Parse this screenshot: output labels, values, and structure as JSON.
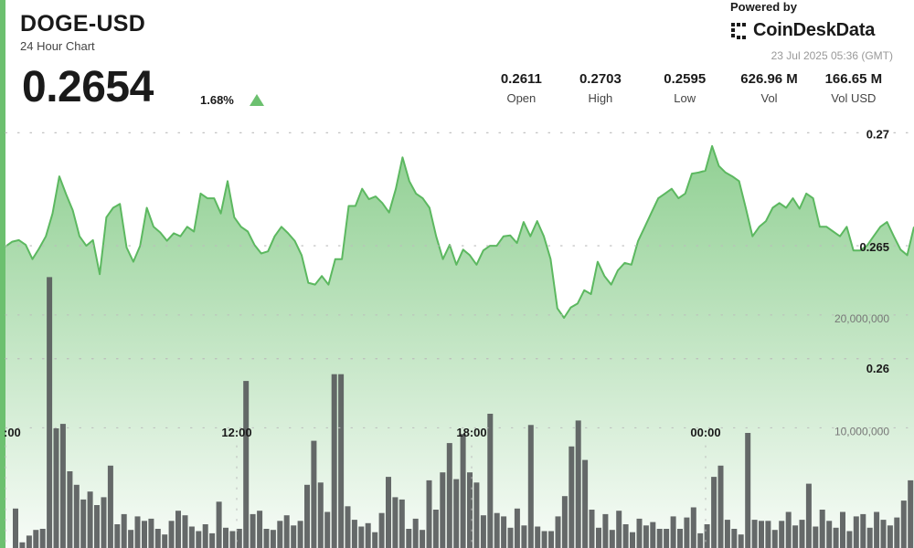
{
  "header": {
    "symbol": "DOGE-USD",
    "subtitle": "24 Hour Chart",
    "price": "0.2654",
    "change_pct": "1.68%",
    "change_direction_icon": "triangle-up-icon"
  },
  "branding": {
    "powered_by": "Powered by",
    "name": "CoinDeskData",
    "timestamp": "23 Jul 2025 05:36 (GMT)"
  },
  "stats": [
    {
      "value": "0.2611",
      "label": "Open"
    },
    {
      "value": "0.2703",
      "label": "High"
    },
    {
      "value": "0.2595",
      "label": "Low"
    },
    {
      "value": "626.96 M",
      "label": "Vol"
    },
    {
      "value": "166.65 M",
      "label": "Vol USD"
    }
  ],
  "colors": {
    "accent_green": "#6cc06f",
    "line_green": "#5cb860",
    "area_green": "#6cc06f",
    "volume_bar": "#55595a",
    "grid": "#bbbbbb"
  },
  "chart_data": [
    {
      "type": "area",
      "title": "DOGE-USD",
      "x_tick_labels": [
        ":00",
        "12:00",
        "18:00",
        "00:00"
      ],
      "y_tick_labels": [
        "0.27",
        "0.265",
        "0.26"
      ],
      "y_ticks": [
        0.27,
        0.265,
        0.26
      ],
      "ylim": [
        0.2589,
        0.2707
      ],
      "grid": true,
      "series": [
        {
          "values": [
            0.26497,
            0.26518,
            0.26525,
            0.26504,
            0.26441,
            0.26488,
            0.26542,
            0.26643,
            0.26807,
            0.26728,
            0.26657,
            0.26542,
            0.265,
            0.26525,
            0.26374,
            0.26626,
            0.26668,
            0.26685,
            0.26492,
            0.26429,
            0.265,
            0.26668,
            0.26584,
            0.26559,
            0.26522,
            0.26555,
            0.26542,
            0.26584,
            0.26563,
            0.26731,
            0.2671,
            0.2671,
            0.26643,
            0.26786,
            0.26626,
            0.26584,
            0.26563,
            0.26504,
            0.26466,
            0.26475,
            0.26542,
            0.26584,
            0.26555,
            0.26521,
            0.26458,
            0.26336,
            0.26328,
            0.26366,
            0.26328,
            0.26441,
            0.26441,
            0.26676,
            0.26676,
            0.26752,
            0.26706,
            0.26718,
            0.26689,
            0.26647,
            0.26752,
            0.26891,
            0.26786,
            0.26731,
            0.2671,
            0.26668,
            0.26542,
            0.26441,
            0.26504,
            0.26416,
            0.26483,
            0.26458,
            0.26416,
            0.26479,
            0.265,
            0.265,
            0.26542,
            0.26546,
            0.26512,
            0.26605,
            0.26542,
            0.26609,
            0.26542,
            0.26441,
            0.26223,
            0.26181,
            0.26227,
            0.26244,
            0.26303,
            0.26286,
            0.26429,
            0.26366,
            0.26328,
            0.26391,
            0.26424,
            0.26416,
            0.26521,
            0.26584,
            0.26647,
            0.2671,
            0.26731,
            0.26752,
            0.2671,
            0.26731,
            0.26819,
            0.26824,
            0.26832,
            0.26941,
            0.26853,
            0.26824,
            0.26807,
            0.26786,
            0.26668,
            0.26542,
            0.26584,
            0.26609,
            0.26668,
            0.26689,
            0.26668,
            0.2671,
            0.26664,
            0.26731,
            0.2671,
            0.26584,
            0.26584,
            0.26563,
            0.26542,
            0.26584,
            0.26479,
            0.26479,
            0.265,
            0.26542,
            0.26584,
            0.26605,
            0.26542,
            0.26483,
            0.26458,
            0.26584
          ]
        }
      ]
    },
    {
      "type": "bar",
      "title": "Volume",
      "y_tick_labels": [
        "10,000,000",
        "20,000,000"
      ],
      "y_ticks": [
        10000000,
        20000000
      ],
      "ylim": [
        0,
        28000000
      ],
      "values": [
        0,
        3500000,
        500000,
        1100000,
        1600000,
        1700000,
        24000000,
        10600000,
        11000000,
        6800000,
        5600000,
        4300000,
        5000000,
        3800000,
        4500000,
        7300000,
        2100000,
        3000000,
        1600000,
        2800000,
        2400000,
        2600000,
        1700000,
        1200000,
        2400000,
        3300000,
        2900000,
        1900000,
        1500000,
        2100000,
        1300000,
        4100000,
        1800000,
        1500000,
        1700000,
        14800000,
        3000000,
        3300000,
        1700000,
        1600000,
        2400000,
        2900000,
        2000000,
        2400000,
        5600000,
        9500000,
        5800000,
        3200000,
        15400000,
        15400000,
        3700000,
        2500000,
        1900000,
        2200000,
        1400000,
        3100000,
        6300000,
        4500000,
        4300000,
        1700000,
        2600000,
        1600000,
        6000000,
        3400000,
        6700000,
        9300000,
        6100000,
        10100000,
        6700000,
        5800000,
        2900000,
        11900000,
        3100000,
        2800000,
        1800000,
        3500000,
        2000000,
        10900000,
        1900000,
        1500000,
        1500000,
        2800000,
        4600000,
        9000000,
        11300000,
        7800000,
        3400000,
        1800000,
        3000000,
        1600000,
        3300000,
        2100000,
        1400000,
        2600000,
        2000000,
        2300000,
        1700000,
        1700000,
        2800000,
        1700000,
        2700000,
        3600000,
        1300000,
        2100000,
        6300000,
        7300000,
        2500000,
        1700000,
        1200000,
        10200000,
        2500000,
        2400000,
        2400000,
        1600000,
        2400000,
        3200000,
        2000000,
        2500000,
        5700000,
        1900000,
        3400000,
        2400000,
        1800000,
        3200000,
        1500000,
        2800000,
        3000000,
        1800000,
        3200000,
        2500000,
        2000000,
        2700000,
        4200000,
        6000000
      ]
    }
  ]
}
